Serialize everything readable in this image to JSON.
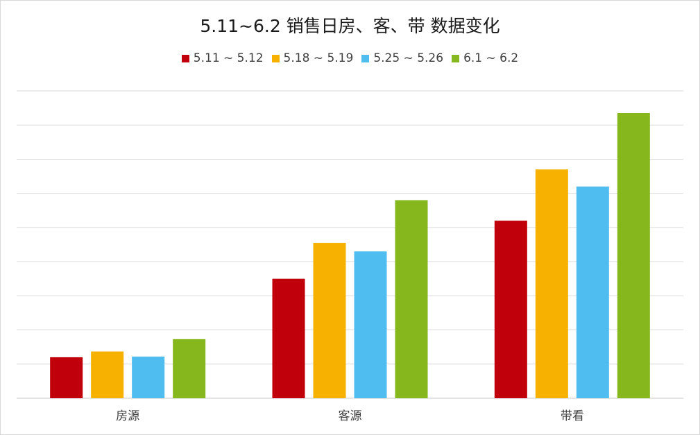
{
  "chart_data": {
    "type": "bar",
    "title": "5.11~6.2 销售日房、客、带 数据变化",
    "categories": [
      "房源",
      "客源",
      "带看"
    ],
    "series": [
      {
        "name": "5.11 ~ 5.12",
        "color": "#c0000b",
        "values": [
          12,
          35,
          52
        ]
      },
      {
        "name": "5.18 ~ 5.19",
        "color": "#f7b100",
        "values": [
          13.7,
          45.5,
          67
        ]
      },
      {
        "name": "5.25 ~ 5.26",
        "color": "#50bdf0",
        "values": [
          12.2,
          43,
          62
        ]
      },
      {
        "name": "6.1 ~ 6.2",
        "color": "#86b81d",
        "values": [
          17.3,
          58,
          83.5
        ]
      }
    ],
    "ylim": [
      0,
      90
    ],
    "gridlines": 9,
    "grid": true,
    "legend_position": "top-center",
    "xlabel": "",
    "ylabel": ""
  }
}
